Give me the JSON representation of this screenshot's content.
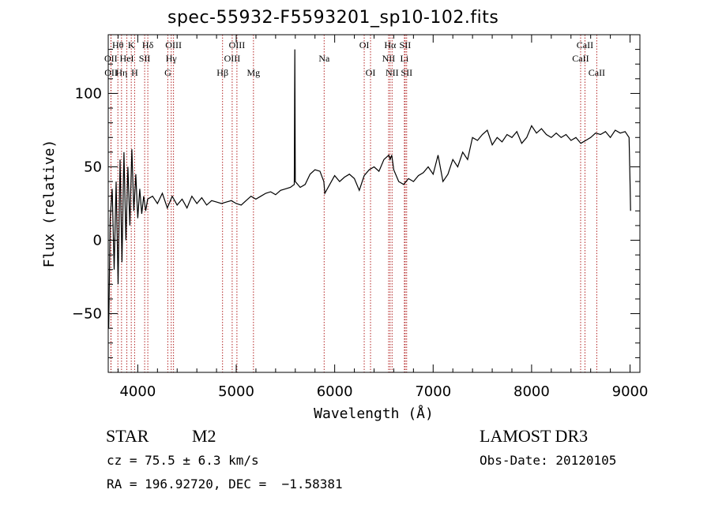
{
  "chart_data": {
    "type": "line",
    "title": "spec-55932-F5593201_sp10-102.fits",
    "xlabel": "Wavelength (Å)",
    "ylabel": "Flux (relative)",
    "xlim": [
      3700,
      9100
    ],
    "ylim": [
      -90,
      140
    ],
    "xticks": [
      4000,
      5000,
      6000,
      7000,
      8000,
      9000
    ],
    "yticks": [
      -50,
      0,
      50,
      100
    ],
    "tick_labels": {
      "x": [
        "4000",
        "5000",
        "6000",
        "7000",
        "8000",
        "9000"
      ],
      "y": [
        "−50",
        "0",
        "50",
        "100"
      ]
    },
    "grid": false,
    "series": [
      {
        "name": "flux",
        "color": "#000000",
        "x": [
          3705,
          3720,
          3740,
          3760,
          3780,
          3800,
          3820,
          3840,
          3860,
          3880,
          3900,
          3920,
          3940,
          3960,
          3980,
          4000,
          4020,
          4040,
          4060,
          4080,
          4100,
          4150,
          4200,
          4250,
          4300,
          4350,
          4400,
          4450,
          4500,
          4550,
          4600,
          4650,
          4700,
          4750,
          4800,
          4850,
          4900,
          4950,
          5000,
          5050,
          5100,
          5150,
          5200,
          5250,
          5300,
          5350,
          5400,
          5450,
          5500,
          5550,
          5590,
          5595,
          5600,
          5650,
          5700,
          5750,
          5800,
          5850,
          5890,
          5900,
          5950,
          6000,
          6050,
          6100,
          6150,
          6200,
          6250,
          6300,
          6350,
          6400,
          6450,
          6500,
          6550,
          6563,
          6580,
          6600,
          6650,
          6700,
          6750,
          6800,
          6850,
          6900,
          6950,
          7000,
          7050,
          7100,
          7150,
          7200,
          7250,
          7300,
          7350,
          7400,
          7450,
          7500,
          7550,
          7600,
          7650,
          7700,
          7750,
          7800,
          7850,
          7900,
          7950,
          8000,
          8050,
          8100,
          8150,
          8200,
          8250,
          8300,
          8350,
          8400,
          8450,
          8500,
          8550,
          8600,
          8650,
          8700,
          8750,
          8800,
          8850,
          8900,
          8950,
          8990,
          9000,
          9005
        ],
        "y": [
          -60,
          15,
          35,
          -20,
          40,
          -30,
          55,
          -15,
          60,
          0,
          50,
          10,
          62,
          20,
          45,
          15,
          35,
          18,
          30,
          20,
          28,
          30,
          25,
          32,
          22,
          30,
          24,
          28,
          22,
          30,
          25,
          29,
          24,
          27,
          26,
          25,
          26,
          27,
          25,
          24,
          27,
          30,
          28,
          30,
          32,
          33,
          31,
          34,
          35,
          36,
          38,
          130,
          40,
          36,
          38,
          45,
          48,
          47,
          40,
          32,
          38,
          44,
          40,
          43,
          45,
          42,
          34,
          44,
          48,
          50,
          47,
          55,
          58,
          55,
          58,
          48,
          40,
          38,
          42,
          40,
          44,
          46,
          50,
          45,
          58,
          40,
          45,
          55,
          50,
          60,
          55,
          70,
          68,
          72,
          75,
          65,
          70,
          67,
          72,
          70,
          74,
          66,
          70,
          78,
          73,
          76,
          72,
          70,
          73,
          70,
          72,
          68,
          70,
          66,
          68,
          70,
          73,
          72,
          74,
          70,
          75,
          73,
          74,
          70,
          40,
          20
        ]
      }
    ],
    "line_markers": [
      {
        "label": "Hθ",
        "wave": 3798,
        "row": 1
      },
      {
        "label": "K",
        "wave": 3934,
        "row": 1
      },
      {
        "label": "Hδ",
        "wave": 4102,
        "row": 1
      },
      {
        "label": "OIII",
        "wave": 4363,
        "row": 1
      },
      {
        "label": "OIII",
        "wave": 5007,
        "row": 1
      },
      {
        "label": "OI",
        "wave": 6300,
        "row": 1
      },
      {
        "label": "Hα",
        "wave": 6563,
        "row": 1
      },
      {
        "label": "SII",
        "wave": 6716,
        "row": 1
      },
      {
        "label": "CaII",
        "wave": 8542,
        "row": 1
      },
      {
        "label": "OII",
        "wave": 3727,
        "row": 2
      },
      {
        "label": "HeI",
        "wave": 3889,
        "row": 2
      },
      {
        "label": "SII",
        "wave": 4070,
        "row": 2
      },
      {
        "label": "Hγ",
        "wave": 4340,
        "row": 2
      },
      {
        "label": "OIII",
        "wave": 4959,
        "row": 2
      },
      {
        "label": "Na",
        "wave": 5893,
        "row": 2
      },
      {
        "label": "NII",
        "wave": 6548,
        "row": 2
      },
      {
        "label": "Li",
        "wave": 6708,
        "row": 2
      },
      {
        "label": "CaII",
        "wave": 8498,
        "row": 2
      },
      {
        "label": "OII",
        "wave": 3729,
        "row": 3
      },
      {
        "label": "Hη",
        "wave": 3835,
        "row": 3
      },
      {
        "label": "H",
        "wave": 3968,
        "row": 3
      },
      {
        "label": "G",
        "wave": 4305,
        "row": 3
      },
      {
        "label": "Hβ",
        "wave": 4861,
        "row": 3
      },
      {
        "label": "Mg",
        "wave": 5175,
        "row": 3
      },
      {
        "label": "OI",
        "wave": 6364,
        "row": 3
      },
      {
        "label": "NII",
        "wave": 6583,
        "row": 3
      },
      {
        "label": "SII",
        "wave": 6731,
        "row": 3
      },
      {
        "label": "CaII",
        "wave": 8662,
        "row": 3
      }
    ],
    "marker_color": "#b22222"
  },
  "info": {
    "object_class": "STAR",
    "subclass": "M2",
    "survey": "LAMOST DR3",
    "cz": "cz = 75.5 ± 6.3 km/s",
    "obs_date": "Obs-Date: 20120105",
    "coords": "RA = 196.92720, DEC =  −1.58381"
  }
}
